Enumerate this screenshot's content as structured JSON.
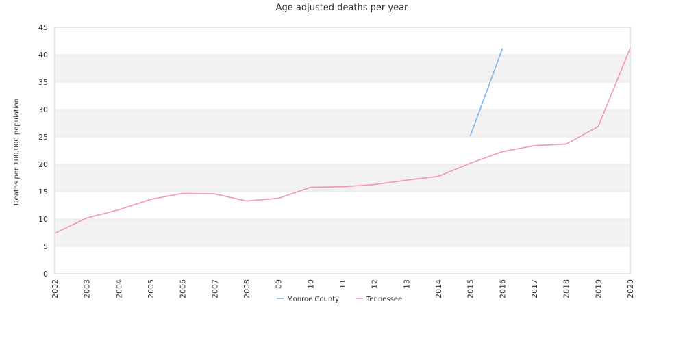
{
  "chart_data": {
    "type": "line",
    "title": "Age adjusted deaths per year",
    "xlabel": "",
    "ylabel": "Deaths per 100,000 population",
    "ylim": [
      0,
      45
    ],
    "yticks": [
      0,
      5,
      10,
      15,
      20,
      25,
      30,
      35,
      40,
      45
    ],
    "grid": true,
    "legend_position": "bottom",
    "categories": [
      "2002",
      "2003",
      "2004",
      "2005",
      "2006",
      "2007",
      "2008",
      "09",
      "10",
      "11",
      "12",
      "13",
      "2014",
      "2015",
      "2016",
      "2017",
      "2018",
      "2019",
      "2020"
    ],
    "series": [
      {
        "name": "Monroe County",
        "color": "#7cb5ec",
        "values": [
          null,
          null,
          null,
          null,
          null,
          null,
          null,
          null,
          null,
          null,
          null,
          null,
          null,
          25.2,
          41.1,
          null,
          null,
          null,
          null
        ]
      },
      {
        "name": "Tennessee",
        "color": "#f192c3",
        "values": [
          7.4,
          10.2,
          11.7,
          13.6,
          14.7,
          14.6,
          13.3,
          13.8,
          15.8,
          15.9,
          16.3,
          17.1,
          17.8,
          20.2,
          22.3,
          23.4,
          23.7,
          26.9,
          41.2
        ]
      }
    ]
  }
}
